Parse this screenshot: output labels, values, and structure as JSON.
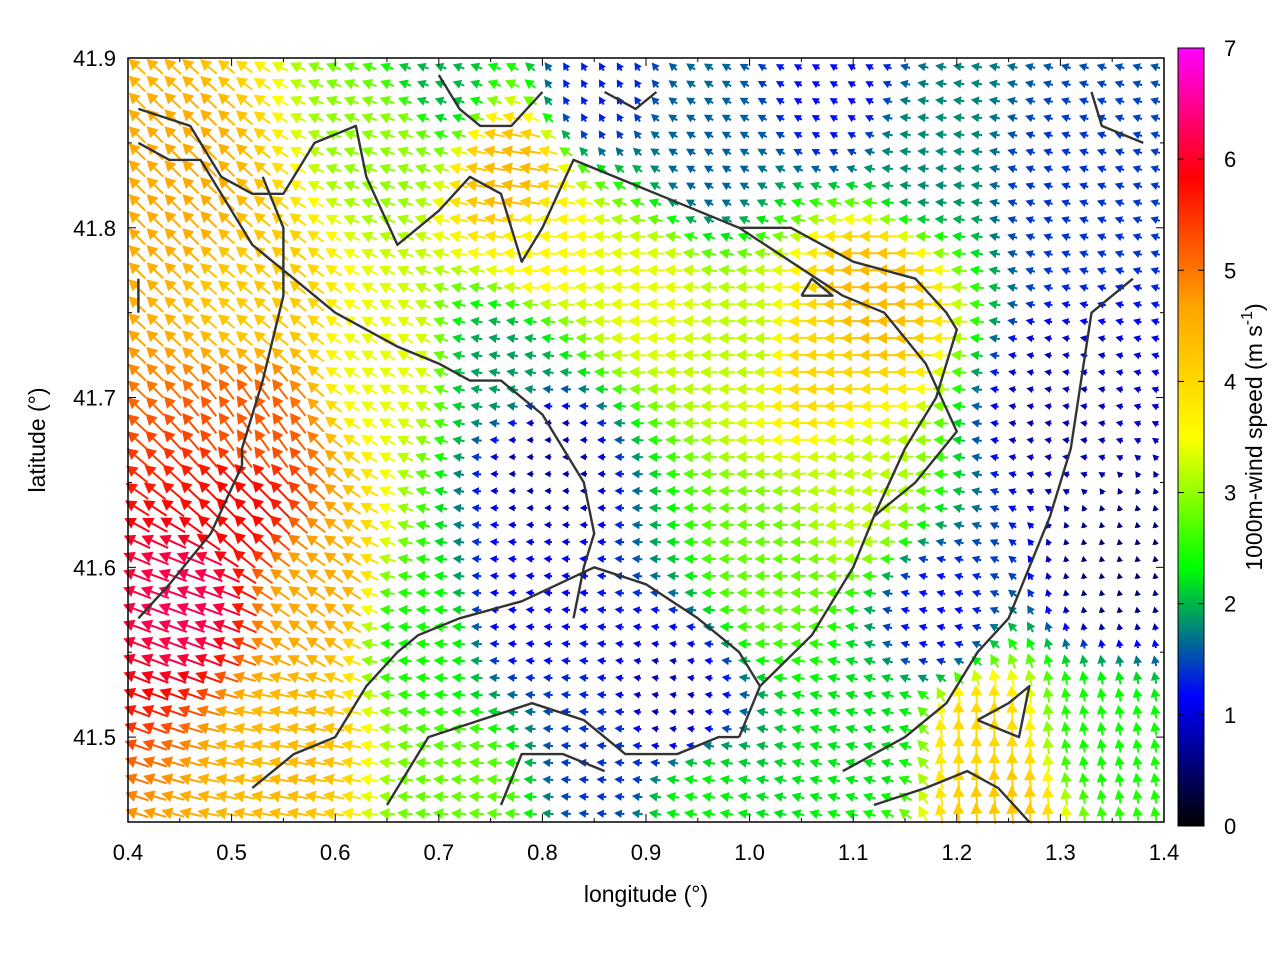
{
  "chart_data": {
    "type": "quiver",
    "title": "",
    "xlabel": "longitude (°)",
    "ylabel": "latitude (°)",
    "xlim": [
      0.4,
      1.4
    ],
    "ylim": [
      41.45,
      41.9
    ],
    "xticks": [
      0.4,
      0.5,
      0.6,
      0.7,
      0.8,
      0.9,
      1.0,
      1.1,
      1.2,
      1.3,
      1.4
    ],
    "xtick_labels": [
      "0.4",
      "0.5",
      "0.6",
      "0.7",
      "0.8",
      "0.9",
      "1.0",
      "1.1",
      "1.2",
      "1.3",
      "1.4"
    ],
    "yticks": [
      41.5,
      41.6,
      41.7,
      41.8,
      41.9
    ],
    "ytick_labels": [
      "41.5",
      "41.6",
      "41.7",
      "41.8",
      "41.9"
    ],
    "colorbar": {
      "label_main": "1000m-wind speed (m s",
      "label_sup": "-1",
      "label_end": ")",
      "min": 0,
      "max": 7,
      "ticks": [
        "0",
        "1",
        "2",
        "3",
        "4",
        "5",
        "6",
        "7"
      ],
      "colors": [
        "#000000",
        "#0000ff",
        "#00ff00",
        "#ffff00",
        "#ffa500",
        "#ff0000",
        "#ff00ff"
      ]
    },
    "wind_field": {
      "description_units": "speed in m s-1, direction in degrees toward which wind blows (0 = east, 90 = north)",
      "centers": [
        {
          "lon": 0.51,
          "lat": 41.64,
          "speed": 5.8,
          "dir": 135
        },
        {
          "lon": 0.46,
          "lat": 41.58,
          "speed": 6.2,
          "dir": 160
        },
        {
          "lon": 0.52,
          "lat": 41.68,
          "speed": 5.2,
          "dir": 125
        },
        {
          "lon": 0.45,
          "lat": 41.82,
          "speed": 4.6,
          "dir": 135
        },
        {
          "lon": 0.52,
          "lat": 41.76,
          "speed": 4.2,
          "dir": 140
        },
        {
          "lon": 0.58,
          "lat": 41.58,
          "speed": 4.6,
          "dir": 145
        },
        {
          "lon": 0.55,
          "lat": 41.5,
          "speed": 4.4,
          "dir": 170
        },
        {
          "lon": 0.65,
          "lat": 41.72,
          "speed": 3.4,
          "dir": 150
        },
        {
          "lon": 0.65,
          "lat": 41.85,
          "speed": 3.0,
          "dir": 160
        },
        {
          "lon": 0.77,
          "lat": 41.83,
          "speed": 4.4,
          "dir": 170
        },
        {
          "lon": 0.8,
          "lat": 41.79,
          "speed": 3.6,
          "dir": 175
        },
        {
          "lon": 0.9,
          "lat": 41.76,
          "speed": 3.4,
          "dir": 178
        },
        {
          "lon": 1.0,
          "lat": 41.73,
          "speed": 3.2,
          "dir": 180
        },
        {
          "lon": 1.12,
          "lat": 41.76,
          "speed": 4.4,
          "dir": 180
        },
        {
          "lon": 1.06,
          "lat": 41.72,
          "speed": 4.0,
          "dir": 182
        },
        {
          "lon": 1.1,
          "lat": 41.64,
          "speed": 3.2,
          "dir": 185
        },
        {
          "lon": 1.02,
          "lat": 41.6,
          "speed": 2.8,
          "dir": 180
        },
        {
          "lon": 0.68,
          "lat": 41.56,
          "speed": 2.4,
          "dir": 175
        },
        {
          "lon": 0.8,
          "lat": 41.66,
          "speed": 0.7,
          "dir": 180
        },
        {
          "lon": 0.78,
          "lat": 41.58,
          "speed": 1.1,
          "dir": 175
        },
        {
          "lon": 0.92,
          "lat": 41.52,
          "speed": 0.8,
          "dir": 170
        },
        {
          "lon": 0.86,
          "lat": 41.49,
          "speed": 1.4,
          "dir": 175
        },
        {
          "lon": 0.76,
          "lat": 41.72,
          "speed": 1.9,
          "dir": 170
        },
        {
          "lon": 0.96,
          "lat": 41.84,
          "speed": 1.6,
          "dir": 150
        },
        {
          "lon": 0.85,
          "lat": 41.88,
          "speed": 1.3,
          "dir": 120
        },
        {
          "lon": 0.7,
          "lat": 41.89,
          "speed": 2.0,
          "dir": 160
        },
        {
          "lon": 1.17,
          "lat": 41.84,
          "speed": 1.8,
          "dir": 175
        },
        {
          "lon": 1.3,
          "lat": 41.82,
          "speed": 1.4,
          "dir": 160
        },
        {
          "lon": 1.3,
          "lat": 41.69,
          "speed": 0.8,
          "dir": 170
        },
        {
          "lon": 1.35,
          "lat": 41.6,
          "speed": 0.5,
          "dir": 100
        },
        {
          "lon": 1.22,
          "lat": 41.5,
          "speed": 4.0,
          "dir": 90
        },
        {
          "lon": 1.24,
          "lat": 41.46,
          "speed": 4.2,
          "dir": 95
        },
        {
          "lon": 1.34,
          "lat": 41.5,
          "speed": 2.4,
          "dir": 100
        },
        {
          "lon": 1.18,
          "lat": 41.57,
          "speed": 1.2,
          "dir": 165
        },
        {
          "lon": 1.12,
          "lat": 41.5,
          "speed": 2.2,
          "dir": 165
        },
        {
          "lon": 0.95,
          "lat": 41.46,
          "speed": 2.3,
          "dir": 170
        },
        {
          "lon": 0.72,
          "lat": 41.46,
          "speed": 2.8,
          "dir": 175
        },
        {
          "lon": 1.08,
          "lat": 41.88,
          "speed": 1.2,
          "dir": 150
        }
      ]
    },
    "contours": [
      {
        "name": "contour-west-loop",
        "points": [
          [
            0.41,
            41.87
          ],
          [
            0.46,
            41.86
          ],
          [
            0.49,
            41.83
          ],
          [
            0.52,
            41.82
          ],
          [
            0.55,
            41.82
          ],
          [
            0.58,
            41.85
          ],
          [
            0.62,
            41.86
          ],
          [
            0.63,
            41.83
          ],
          [
            0.66,
            41.79
          ],
          [
            0.7,
            41.81
          ],
          [
            0.73,
            41.83
          ],
          [
            0.76,
            41.82
          ],
          [
            0.77,
            41.8
          ],
          [
            0.78,
            41.78
          ],
          [
            0.8,
            41.8
          ],
          [
            0.83,
            41.84
          ],
          [
            0.91,
            41.82
          ],
          [
            0.99,
            41.8
          ],
          [
            1.04,
            41.8
          ],
          [
            1.1,
            41.78
          ],
          [
            1.16,
            41.77
          ],
          [
            1.19,
            41.75
          ],
          [
            1.2,
            41.74
          ],
          [
            1.18,
            41.7
          ],
          [
            1.15,
            41.67
          ],
          [
            1.12,
            41.63
          ],
          [
            1.1,
            41.6
          ],
          [
            1.06,
            41.56
          ],
          [
            1.01,
            41.53
          ],
          [
            0.99,
            41.5
          ]
        ]
      },
      {
        "name": "contour-north-west",
        "points": [
          [
            0.41,
            41.85
          ],
          [
            0.44,
            41.84
          ],
          [
            0.47,
            41.84
          ],
          [
            0.5,
            41.81
          ],
          [
            0.52,
            41.79
          ],
          [
            0.56,
            41.77
          ],
          [
            0.6,
            41.75
          ],
          [
            0.63,
            41.74
          ],
          [
            0.66,
            41.73
          ],
          [
            0.7,
            41.72
          ],
          [
            0.73,
            41.71
          ],
          [
            0.76,
            41.71
          ],
          [
            0.78,
            41.7
          ],
          [
            0.8,
            41.69
          ],
          [
            0.82,
            41.67
          ],
          [
            0.84,
            41.65
          ],
          [
            0.85,
            41.62
          ],
          [
            0.84,
            41.6
          ],
          [
            0.83,
            41.57
          ]
        ]
      },
      {
        "name": "contour-west-vertical",
        "points": [
          [
            0.53,
            41.83
          ],
          [
            0.55,
            41.8
          ],
          [
            0.55,
            41.76
          ],
          [
            0.53,
            41.71
          ],
          [
            0.51,
            41.67
          ],
          [
            0.51,
            41.66
          ]
        ]
      },
      {
        "name": "contour-west-south",
        "points": [
          [
            0.51,
            41.66
          ],
          [
            0.48,
            41.62
          ],
          [
            0.44,
            41.59
          ],
          [
            0.41,
            41.57
          ]
        ]
      },
      {
        "name": "contour-inner-east",
        "points": [
          [
            0.99,
            41.8
          ],
          [
            1.04,
            41.78
          ],
          [
            1.09,
            41.76
          ],
          [
            1.13,
            41.75
          ],
          [
            1.17,
            41.72
          ],
          [
            1.2,
            41.68
          ],
          [
            1.16,
            41.65
          ],
          [
            1.12,
            41.63
          ]
        ]
      },
      {
        "name": "contour-far-east",
        "points": [
          [
            1.38,
            41.85
          ],
          [
            1.34,
            41.86
          ],
          [
            1.33,
            41.88
          ]
        ]
      },
      {
        "name": "contour-east-coast",
        "points": [
          [
            1.37,
            41.77
          ],
          [
            1.33,
            41.75
          ],
          [
            1.32,
            41.71
          ],
          [
            1.31,
            41.67
          ],
          [
            1.29,
            41.63
          ],
          [
            1.27,
            41.6
          ],
          [
            1.25,
            41.57
          ],
          [
            1.22,
            41.55
          ],
          [
            1.19,
            41.52
          ],
          [
            1.15,
            41.5
          ],
          [
            1.12,
            41.49
          ],
          [
            1.09,
            41.48
          ]
        ]
      },
      {
        "name": "contour-south-west",
        "points": [
          [
            0.52,
            41.47
          ],
          [
            0.56,
            41.49
          ],
          [
            0.6,
            41.5
          ],
          [
            0.63,
            41.53
          ],
          [
            0.66,
            41.55
          ],
          [
            0.68,
            41.56
          ],
          [
            0.72,
            41.57
          ],
          [
            0.78,
            41.58
          ],
          [
            0.85,
            41.6
          ],
          [
            0.9,
            41.59
          ],
          [
            0.95,
            41.57
          ],
          [
            0.99,
            41.55
          ],
          [
            1.01,
            41.53
          ]
        ]
      },
      {
        "name": "contour-south-inner",
        "points": [
          [
            0.65,
            41.46
          ],
          [
            0.69,
            41.5
          ],
          [
            0.74,
            41.51
          ],
          [
            0.79,
            41.52
          ],
          [
            0.84,
            41.51
          ],
          [
            0.88,
            41.49
          ],
          [
            0.93,
            41.49
          ],
          [
            0.97,
            41.5
          ],
          [
            0.99,
            41.5
          ]
        ]
      },
      {
        "name": "contour-south-small",
        "points": [
          [
            0.76,
            41.46
          ],
          [
            0.78,
            41.49
          ],
          [
            0.82,
            41.49
          ],
          [
            0.86,
            41.48
          ]
        ]
      },
      {
        "name": "contour-south-east",
        "points": [
          [
            1.12,
            41.46
          ],
          [
            1.17,
            41.47
          ],
          [
            1.21,
            41.48
          ],
          [
            1.24,
            41.47
          ],
          [
            1.27,
            41.45
          ]
        ]
      },
      {
        "name": "contour-island-east",
        "points": [
          [
            1.22,
            41.51
          ],
          [
            1.25,
            41.52
          ],
          [
            1.27,
            41.53
          ],
          [
            1.26,
            41.5
          ],
          [
            1.22,
            41.51
          ]
        ]
      },
      {
        "name": "contour-north-small",
        "points": [
          [
            0.86,
            41.88
          ],
          [
            0.89,
            41.87
          ],
          [
            0.91,
            41.88
          ]
        ]
      },
      {
        "name": "contour-north-mid",
        "points": [
          [
            0.7,
            41.89
          ],
          [
            0.72,
            41.87
          ],
          [
            0.74,
            41.86
          ],
          [
            0.77,
            41.86
          ],
          [
            0.8,
            41.88
          ]
        ]
      },
      {
        "name": "contour-lake",
        "points": [
          [
            1.05,
            41.76
          ],
          [
            1.07,
            41.76
          ],
          [
            1.08,
            41.76
          ],
          [
            1.06,
            41.77
          ],
          [
            1.05,
            41.76
          ]
        ]
      },
      {
        "name": "contour-tiny-west",
        "points": [
          [
            0.41,
            41.77
          ],
          [
            0.41,
            41.75
          ]
        ]
      }
    ]
  }
}
